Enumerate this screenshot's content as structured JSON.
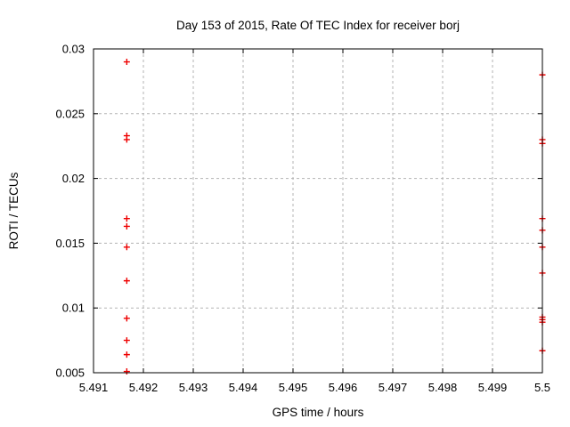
{
  "chart_data": {
    "type": "scatter",
    "title": "Day 153 of 2015, Rate Of TEC Index for receiver borj",
    "xlabel": "GPS time / hours",
    "ylabel": "ROTI / TECUs",
    "xlim": [
      5.491,
      5.5
    ],
    "ylim": [
      0.005,
      0.03
    ],
    "grid": true,
    "legend": "none",
    "xticks": [
      {
        "v": 5.491,
        "label": "5.491"
      },
      {
        "v": 5.492,
        "label": "5.492"
      },
      {
        "v": 5.493,
        "label": "5.493"
      },
      {
        "v": 5.494,
        "label": "5.494"
      },
      {
        "v": 5.495,
        "label": "5.495"
      },
      {
        "v": 5.496,
        "label": "5.496"
      },
      {
        "v": 5.497,
        "label": "5.497"
      },
      {
        "v": 5.498,
        "label": "5.498"
      },
      {
        "v": 5.499,
        "label": "5.499"
      },
      {
        "v": 5.5,
        "label": "5.5"
      }
    ],
    "yticks": [
      {
        "v": 0.005,
        "label": "0.005"
      },
      {
        "v": 0.01,
        "label": "0.01"
      },
      {
        "v": 0.015,
        "label": "0.015"
      },
      {
        "v": 0.02,
        "label": "0.02"
      },
      {
        "v": 0.025,
        "label": "0.025"
      },
      {
        "v": 0.03,
        "label": "0.03"
      }
    ],
    "marker": {
      "shape": "plus",
      "size": 7,
      "color": "#ee0000"
    },
    "colors": {
      "marker": "#ee0000",
      "grid": "#b3b3b3",
      "frame": "#000000",
      "text": "#000000",
      "background": "#ffffff"
    },
    "series": [
      {
        "name": "roti-points",
        "points": [
          [
            5.491667,
            0.029
          ],
          [
            5.491667,
            0.0233
          ],
          [
            5.491667,
            0.023
          ],
          [
            5.491667,
            0.0169
          ],
          [
            5.491667,
            0.0163
          ],
          [
            5.491667,
            0.0147
          ],
          [
            5.491667,
            0.0121
          ],
          [
            5.491667,
            0.0092
          ],
          [
            5.491667,
            0.0075
          ],
          [
            5.491667,
            0.0064
          ],
          [
            5.491667,
            0.0051
          ],
          [
            5.5,
            0.028
          ],
          [
            5.5,
            0.023
          ],
          [
            5.5,
            0.0227
          ],
          [
            5.5,
            0.0169
          ],
          [
            5.5,
            0.016
          ],
          [
            5.5,
            0.0147
          ],
          [
            5.5,
            0.0127
          ],
          [
            5.5,
            0.0093
          ],
          [
            5.5,
            0.0091
          ],
          [
            5.5,
            0.0089
          ],
          [
            5.5,
            0.0067
          ]
        ]
      }
    ]
  }
}
